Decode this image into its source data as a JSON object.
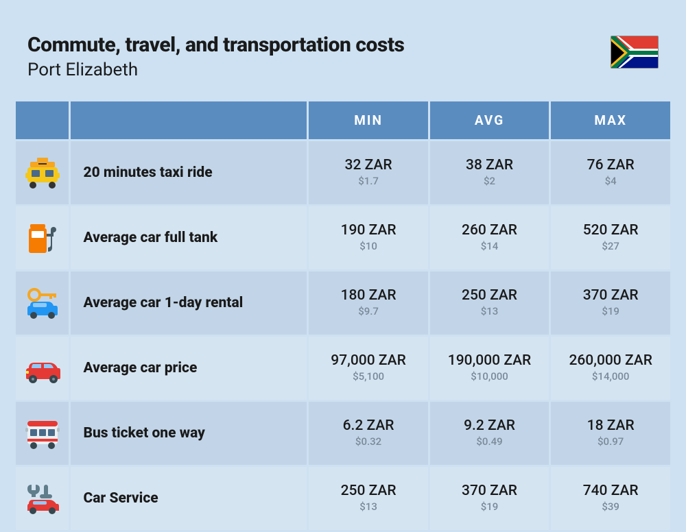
{
  "header": {
    "title": "Commute, travel, and transportation costs",
    "subtitle": "Port Elizabeth"
  },
  "columns": {
    "c1": "MIN",
    "c2": "AVG",
    "c3": "MAX"
  },
  "colors": {
    "page_bg": "#cde1f2",
    "header_bg": "#5a8cc0",
    "header_text": "#ffffff",
    "row_odd": "#c2d5e8",
    "row_even": "#d5e4f1",
    "main_text": "#1a1a1a",
    "sub_text": "#7a8a9a"
  },
  "rows": [
    {
      "icon": "taxi",
      "label": "20 minutes taxi ride",
      "min_main": "32 ZAR",
      "min_sub": "$1.7",
      "avg_main": "38 ZAR",
      "avg_sub": "$2",
      "max_main": "76 ZAR",
      "max_sub": "$4"
    },
    {
      "icon": "fuel",
      "label": "Average car full tank",
      "min_main": "190 ZAR",
      "min_sub": "$10",
      "avg_main": "260 ZAR",
      "avg_sub": "$14",
      "max_main": "520 ZAR",
      "max_sub": "$27"
    },
    {
      "icon": "rental",
      "label": "Average car 1-day rental",
      "min_main": "180 ZAR",
      "min_sub": "$9.7",
      "avg_main": "250 ZAR",
      "avg_sub": "$13",
      "max_main": "370 ZAR",
      "max_sub": "$19"
    },
    {
      "icon": "car",
      "label": "Average car price",
      "min_main": "97,000 ZAR",
      "min_sub": "$5,100",
      "avg_main": "190,000 ZAR",
      "avg_sub": "$10,000",
      "max_main": "260,000 ZAR",
      "max_sub": "$14,000"
    },
    {
      "icon": "bus",
      "label": "Bus ticket one way",
      "min_main": "6.2 ZAR",
      "min_sub": "$0.32",
      "avg_main": "9.2 ZAR",
      "avg_sub": "$0.49",
      "max_main": "18 ZAR",
      "max_sub": "$0.97"
    },
    {
      "icon": "service",
      "label": "Car Service",
      "min_main": "250 ZAR",
      "min_sub": "$13",
      "avg_main": "370 ZAR",
      "avg_sub": "$19",
      "max_main": "740 ZAR",
      "max_sub": "$39"
    }
  ]
}
